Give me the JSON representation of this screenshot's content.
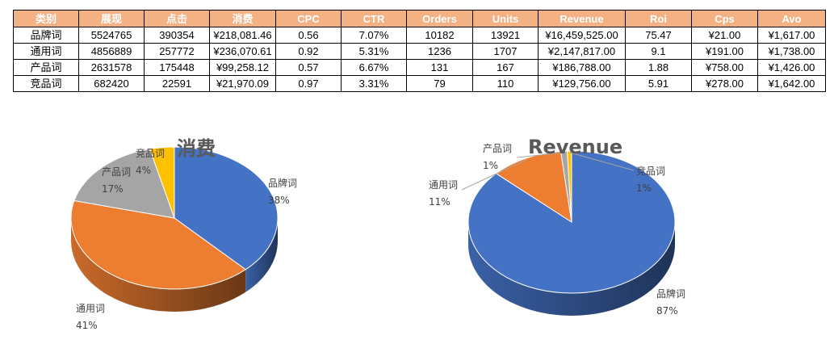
{
  "table": {
    "headers": [
      "类别",
      "展现",
      "点击",
      "消费",
      "CPC",
      "CTR",
      "Orders",
      "Units",
      "Revenue",
      "Roi",
      "Cps",
      "Avo"
    ],
    "rows": [
      [
        "品牌词",
        "5524765",
        "390354",
        "¥218,081.46",
        "0.56",
        "7.07%",
        "10182",
        "13921",
        "¥16,459,525.00",
        "75.47",
        "¥21.00",
        "¥1,617.00"
      ],
      [
        "通用词",
        "4856889",
        "257772",
        "¥236,070.61",
        "0.92",
        "5.31%",
        "1236",
        "1707",
        "¥2,147,817.00",
        "9.1",
        "¥191.00",
        "¥1,738.00"
      ],
      [
        "产品词",
        "2631578",
        "175448",
        "¥99,258.12",
        "0.57",
        "6.67%",
        "131",
        "167",
        "¥186,788.00",
        "1.88",
        "¥758.00",
        "¥1,426.00"
      ],
      [
        "竞品词",
        "682420",
        "22591",
        "¥21,970.09",
        "0.97",
        "3.31%",
        "79",
        "110",
        "¥129,756.00",
        "5.91",
        "¥278.00",
        "¥1,642.00"
      ]
    ]
  },
  "chart_data": [
    {
      "type": "pie",
      "title": "消费",
      "categories": [
        "品牌词",
        "通用词",
        "产品词",
        "竞品词"
      ],
      "values": [
        218081.46,
        236070.61,
        99258.12,
        21970.09
      ],
      "labels": [
        "38%",
        "41%",
        "17%",
        "4%"
      ],
      "colors": [
        "#4472c4",
        "#ed7d31",
        "#a5a5a5",
        "#ffc000"
      ]
    },
    {
      "type": "pie",
      "title": "Revenue",
      "categories": [
        "品牌词",
        "通用词",
        "产品词",
        "竞品词"
      ],
      "values": [
        16459525,
        2147817,
        186788,
        129756
      ],
      "labels": [
        "87%",
        "11%",
        "1%",
        "1%"
      ],
      "colors": [
        "#4472c4",
        "#ed7d31",
        "#a5a5a5",
        "#ffc000"
      ]
    }
  ]
}
